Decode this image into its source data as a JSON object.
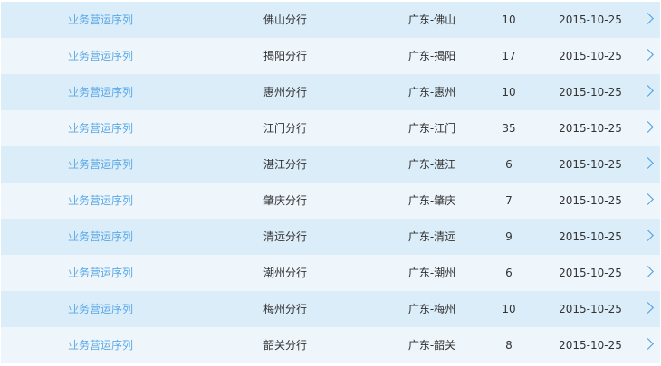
{
  "colors": {
    "row_odd": "#dcedfa",
    "row_even": "#eef5fb",
    "link": "#5aa9e6",
    "chevron": "#4a9ee0"
  },
  "rows": [
    {
      "sequence": "业务营运序列",
      "branch": "佛山分行",
      "region": "广东-佛山",
      "count": "10",
      "date": "2015-10-25",
      "icon": "chevron-right-icon"
    },
    {
      "sequence": "业务营运序列",
      "branch": "揭阳分行",
      "region": "广东-揭阳",
      "count": "17",
      "date": "2015-10-25",
      "icon": "chevron-right-icon"
    },
    {
      "sequence": "业务营运序列",
      "branch": "惠州分行",
      "region": "广东-惠州",
      "count": "10",
      "date": "2015-10-25",
      "icon": "chevron-right-icon"
    },
    {
      "sequence": "业务营运序列",
      "branch": "江门分行",
      "region": "广东-江门",
      "count": "35",
      "date": "2015-10-25",
      "icon": "chevron-right-icon"
    },
    {
      "sequence": "业务营运序列",
      "branch": "湛江分行",
      "region": "广东-湛江",
      "count": "6",
      "date": "2015-10-25",
      "icon": "chevron-right-icon"
    },
    {
      "sequence": "业务营运序列",
      "branch": "肇庆分行",
      "region": "广东-肇庆",
      "count": "7",
      "date": "2015-10-25",
      "icon": "chevron-right-icon"
    },
    {
      "sequence": "业务营运序列",
      "branch": "清远分行",
      "region": "广东-清远",
      "count": "9",
      "date": "2015-10-25",
      "icon": "chevron-right-icon"
    },
    {
      "sequence": "业务营运序列",
      "branch": "潮州分行",
      "region": "广东-潮州",
      "count": "6",
      "date": "2015-10-25",
      "icon": "chevron-right-icon"
    },
    {
      "sequence": "业务营运序列",
      "branch": "梅州分行",
      "region": "广东-梅州",
      "count": "10",
      "date": "2015-10-25",
      "icon": "chevron-right-icon"
    },
    {
      "sequence": "业务营运序列",
      "branch": "韶关分行",
      "region": "广东-韶关",
      "count": "8",
      "date": "2015-10-25",
      "icon": "chevron-right-icon"
    }
  ]
}
